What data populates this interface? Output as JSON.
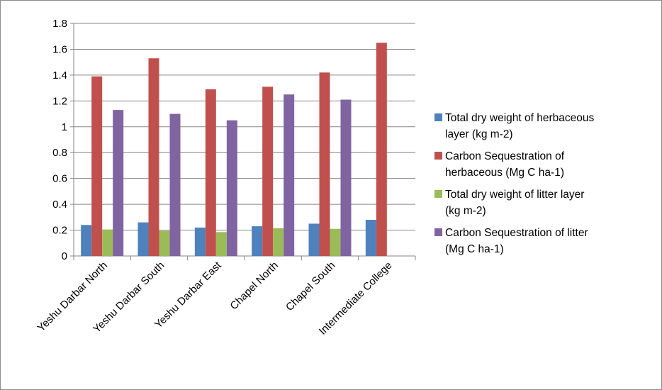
{
  "chart_data": {
    "type": "bar",
    "categories": [
      "Yeshu Darbar North",
      "Yeshu Darbar South",
      "Yeshu Darbar East",
      "Chapel North",
      "Chapel South",
      "Intermediate College"
    ],
    "series": [
      {
        "name": "Total dry weight of herbaceous layer (kg m-2)",
        "color": "#4f81bd",
        "values": [
          0.24,
          0.26,
          0.22,
          0.23,
          0.25,
          0.28
        ]
      },
      {
        "name": "Carbon Sequestration of herbaceous (Mg C ha-1)",
        "color": "#c0504d",
        "values": [
          1.39,
          1.53,
          1.29,
          1.31,
          1.42,
          1.65
        ]
      },
      {
        "name": "Total dry weight of litter layer (kg m-2)",
        "color": "#9bbb59",
        "values": [
          0.205,
          0.195,
          0.185,
          0.215,
          0.21,
          null
        ]
      },
      {
        "name": "Carbon Sequestration of litter (Mg C ha-1)",
        "color": "#8064a2",
        "values": [
          1.13,
          1.1,
          1.05,
          1.25,
          1.21,
          null
        ]
      }
    ],
    "ylim": [
      0,
      1.8
    ],
    "yticks": [
      "0",
      "0.2",
      "0.4",
      "0.6",
      "0.8",
      "1",
      "1.2",
      "1.4",
      "1.6",
      "1.8"
    ],
    "grid": true,
    "legend_position": "right",
    "title": "",
    "xlabel": "",
    "ylabel": ""
  },
  "legend": {
    "items": [
      {
        "line1": "Total dry weight of herbaceous",
        "line2": "layer (kg m-2)"
      },
      {
        "line1": "Carbon Sequestration of",
        "line2": "herbaceous (Mg C ha-1)"
      },
      {
        "line1": "Total dry weight of litter layer",
        "line2": "(kg m-2)"
      },
      {
        "line1": "Carbon Sequestration of litter",
        "line2": "(Mg C ha-1)"
      }
    ]
  }
}
